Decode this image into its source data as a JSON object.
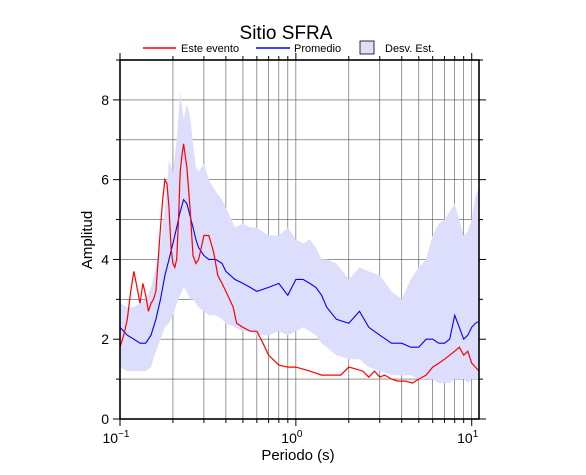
{
  "chart_data": {
    "type": "line",
    "title": "Sitio SFRA",
    "xlabel": "Periodo (s)",
    "ylabel": "Amplitud",
    "x_scale": "log",
    "xlim": [
      0.1,
      11
    ],
    "ylim": [
      0,
      9
    ],
    "grid": true,
    "legend_position": "top",
    "x_ticks": [
      {
        "value": 0.1,
        "base": "10",
        "exp": "−1"
      },
      {
        "value": 1,
        "base": "10",
        "exp": "0"
      },
      {
        "value": 10,
        "base": "10",
        "exp": "1"
      }
    ],
    "y_ticks": [
      {
        "value": 0,
        "label": "0"
      },
      {
        "value": 2,
        "label": "2"
      },
      {
        "value": 4,
        "label": "4"
      },
      {
        "value": 6,
        "label": "6"
      },
      {
        "value": 8,
        "label": "8"
      }
    ],
    "legend": [
      {
        "label": "Este evento",
        "kind": "line",
        "color": "#ff0000"
      },
      {
        "label": "Promedio",
        "kind": "line",
        "color": "#0000ff"
      },
      {
        "label": "Desv. Est.",
        "kind": "box",
        "color": "#ddddfc"
      }
    ],
    "colors": {
      "este_evento": "#ff0000",
      "promedio": "#0000ff",
      "desv_est": "#ddddfc"
    },
    "series": [
      {
        "name": "Este evento",
        "color": "#ff0000",
        "x": [
          0.1,
          0.105,
          0.11,
          0.115,
          0.12,
          0.125,
          0.13,
          0.135,
          0.14,
          0.145,
          0.15,
          0.155,
          0.16,
          0.165,
          0.17,
          0.175,
          0.18,
          0.185,
          0.19,
          0.195,
          0.2,
          0.205,
          0.21,
          0.215,
          0.22,
          0.225,
          0.23,
          0.24,
          0.25,
          0.26,
          0.27,
          0.28,
          0.29,
          0.3,
          0.32,
          0.34,
          0.36,
          0.38,
          0.4,
          0.42,
          0.44,
          0.46,
          0.5,
          0.55,
          0.6,
          0.65,
          0.7,
          0.8,
          0.9,
          1.0,
          1.2,
          1.4,
          1.6,
          1.8,
          2.0,
          2.2,
          2.4,
          2.6,
          2.8,
          3.0,
          3.2,
          3.5,
          3.8,
          4.2,
          4.6,
          5.0,
          5.5,
          6.0,
          6.5,
          7.0,
          7.5,
          8.0,
          8.5,
          9.0,
          9.5,
          10.0,
          10.5,
          11.0
        ],
        "values": [
          1.8,
          2.1,
          2.5,
          3.2,
          3.7,
          3.3,
          2.9,
          3.4,
          3.1,
          2.7,
          2.9,
          3.0,
          3.2,
          4.0,
          4.8,
          5.5,
          6.0,
          5.9,
          5.3,
          4.3,
          3.9,
          3.8,
          4.0,
          5.0,
          6.2,
          6.6,
          6.9,
          6.3,
          5.3,
          4.1,
          3.9,
          4.0,
          4.3,
          4.6,
          4.6,
          4.2,
          3.6,
          3.4,
          3.2,
          3.0,
          2.8,
          2.4,
          2.3,
          2.2,
          2.2,
          1.9,
          1.6,
          1.35,
          1.3,
          1.3,
          1.2,
          1.1,
          1.1,
          1.1,
          1.3,
          1.25,
          1.2,
          1.05,
          1.2,
          1.05,
          1.1,
          1.0,
          0.95,
          0.95,
          0.9,
          1.0,
          1.1,
          1.3,
          1.4,
          1.5,
          1.6,
          1.7,
          1.8,
          1.6,
          1.7,
          1.4,
          1.3,
          1.2
        ]
      },
      {
        "name": "Promedio",
        "color": "#0000ff",
        "x": [
          0.1,
          0.11,
          0.12,
          0.13,
          0.14,
          0.15,
          0.16,
          0.17,
          0.18,
          0.19,
          0.2,
          0.21,
          0.22,
          0.23,
          0.24,
          0.25,
          0.26,
          0.27,
          0.28,
          0.3,
          0.32,
          0.35,
          0.38,
          0.4,
          0.45,
          0.5,
          0.55,
          0.6,
          0.7,
          0.8,
          0.9,
          1.0,
          1.1,
          1.2,
          1.3,
          1.4,
          1.5,
          1.7,
          2.0,
          2.3,
          2.6,
          3.0,
          3.5,
          4.0,
          4.5,
          5.0,
          5.5,
          6.0,
          6.5,
          7.0,
          7.5,
          8.0,
          8.5,
          9.0,
          9.5,
          10.0,
          10.5,
          11.0
        ],
        "values": [
          2.3,
          2.1,
          2.0,
          1.9,
          1.9,
          2.1,
          2.5,
          3.0,
          3.6,
          4.0,
          4.4,
          4.8,
          5.2,
          5.5,
          5.4,
          5.1,
          4.8,
          4.5,
          4.3,
          4.1,
          4.0,
          4.0,
          3.9,
          3.7,
          3.5,
          3.4,
          3.3,
          3.2,
          3.3,
          3.4,
          3.1,
          3.5,
          3.5,
          3.4,
          3.3,
          3.1,
          2.8,
          2.5,
          2.4,
          2.7,
          2.3,
          2.1,
          1.9,
          1.9,
          1.8,
          1.8,
          2.0,
          2.0,
          1.9,
          1.9,
          2.0,
          2.6,
          2.3,
          2.0,
          2.1,
          2.3,
          2.4,
          2.45
        ]
      }
    ],
    "band": {
      "name": "Desv. Est.",
      "color": "#ddddfc",
      "x": [
        0.1,
        0.11,
        0.12,
        0.13,
        0.14,
        0.15,
        0.16,
        0.17,
        0.18,
        0.19,
        0.2,
        0.21,
        0.22,
        0.23,
        0.24,
        0.25,
        0.26,
        0.27,
        0.28,
        0.3,
        0.32,
        0.35,
        0.38,
        0.4,
        0.45,
        0.5,
        0.55,
        0.6,
        0.7,
        0.8,
        0.9,
        1.0,
        1.1,
        1.2,
        1.3,
        1.4,
        1.5,
        1.7,
        2.0,
        2.3,
        2.6,
        3.0,
        3.5,
        4.0,
        4.5,
        5.0,
        5.5,
        6.0,
        6.5,
        7.0,
        7.5,
        8.0,
        8.5,
        9.0,
        9.5,
        10.0,
        10.5,
        11.0
      ],
      "upper": [
        2.9,
        2.8,
        2.8,
        2.9,
        3.0,
        3.3,
        3.8,
        4.4,
        5.3,
        6.5,
        6.2,
        7.0,
        8.2,
        7.5,
        7.9,
        7.6,
        6.9,
        6.3,
        6.2,
        6.4,
        6.0,
        5.7,
        5.5,
        5.3,
        4.8,
        4.9,
        4.8,
        4.8,
        4.6,
        4.6,
        4.8,
        4.5,
        4.4,
        4.5,
        4.3,
        4.0,
        4.0,
        3.9,
        3.5,
        3.8,
        3.7,
        3.6,
        3.2,
        3.0,
        3.5,
        3.8,
        4.0,
        4.6,
        4.9,
        5.0,
        5.2,
        5.4,
        5.0,
        4.6,
        4.7,
        5.0,
        5.6,
        5.8
      ]
    },
    "band_lower": [
      1.3,
      1.2,
      1.2,
      1.2,
      1.2,
      1.3,
      1.7,
      2.0,
      2.3,
      2.4,
      2.6,
      2.9,
      3.1,
      3.3,
      3.2,
      3.0,
      3.0,
      2.9,
      2.8,
      2.7,
      2.6,
      2.6,
      2.5,
      2.4,
      2.3,
      2.2,
      2.2,
      2.1,
      2.1,
      2.2,
      2.1,
      2.2,
      2.3,
      2.2,
      2.1,
      1.9,
      1.8,
      1.6,
      1.5,
      1.5,
      1.3,
      1.2,
      1.1,
      1.1,
      1.1,
      1.0,
      1.0,
      1.0,
      0.9,
      0.9,
      0.9,
      1.0,
      1.0,
      1.0,
      0.9,
      1.0,
      1.0,
      1.0
    ]
  }
}
